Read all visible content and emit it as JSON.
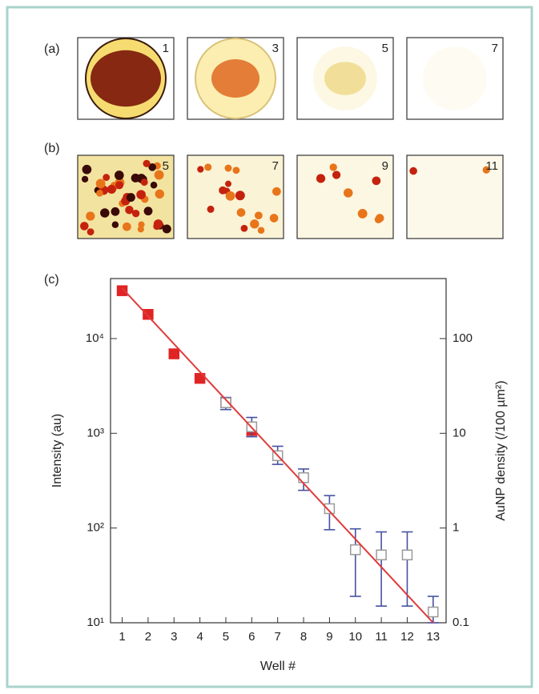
{
  "panel_a": {
    "label": "(a)",
    "wells": [
      "1",
      "3",
      "5",
      "7"
    ]
  },
  "panel_b": {
    "label": "(b)",
    "wells": [
      "5",
      "7",
      "9",
      "11"
    ]
  },
  "chart_data": {
    "type": "scatter",
    "label": "(c)",
    "xlabel": "Well #",
    "ylabel": "Intensity (au)",
    "y2label": "AuNP density (/100 µm²)",
    "xlim": [
      0.55,
      13.5
    ],
    "xticks": [
      1,
      2,
      3,
      4,
      5,
      6,
      7,
      8,
      9,
      10,
      11,
      12,
      13
    ],
    "ylim": [
      10,
      43000
    ],
    "yscale": "log",
    "yticks": [
      {
        "value": 10,
        "label": "10¹"
      },
      {
        "value": 100,
        "label": "10²"
      },
      {
        "value": 1000,
        "label": "10³"
      },
      {
        "value": 10000,
        "label": "10⁴"
      }
    ],
    "y2lim": [
      0.1,
      430
    ],
    "y2ticks": [
      0.1,
      1,
      10,
      100
    ],
    "series": [
      {
        "kind": "markers",
        "fill": "filled",
        "color": "#e02424",
        "x": [
          1,
          2,
          3,
          4,
          5,
          6
        ],
        "values": [
          32000,
          18000,
          6900,
          3800,
          2100,
          1070
        ]
      },
      {
        "kind": "markers",
        "fill": "open",
        "axis": "y2",
        "color": "#9a9a9a",
        "error_color": "#4652a0",
        "x": [
          5,
          6,
          7,
          8,
          9,
          10,
          11,
          12,
          13
        ],
        "values": [
          21,
          11.7,
          5.8,
          3.4,
          1.6,
          0.59,
          0.52,
          0.52,
          0.13
        ],
        "lower": [
          17.8,
          9.2,
          4.7,
          2.5,
          0.96,
          0.19,
          0.15,
          0.15,
          0.1
        ],
        "upper": [
          23.9,
          14.7,
          7.3,
          4.2,
          2.2,
          0.98,
          0.91,
          0.91,
          0.19
        ]
      },
      {
        "kind": "line",
        "color": "#e03a3a",
        "x": [
          1,
          13
        ],
        "values": [
          34000,
          10
        ]
      }
    ]
  }
}
